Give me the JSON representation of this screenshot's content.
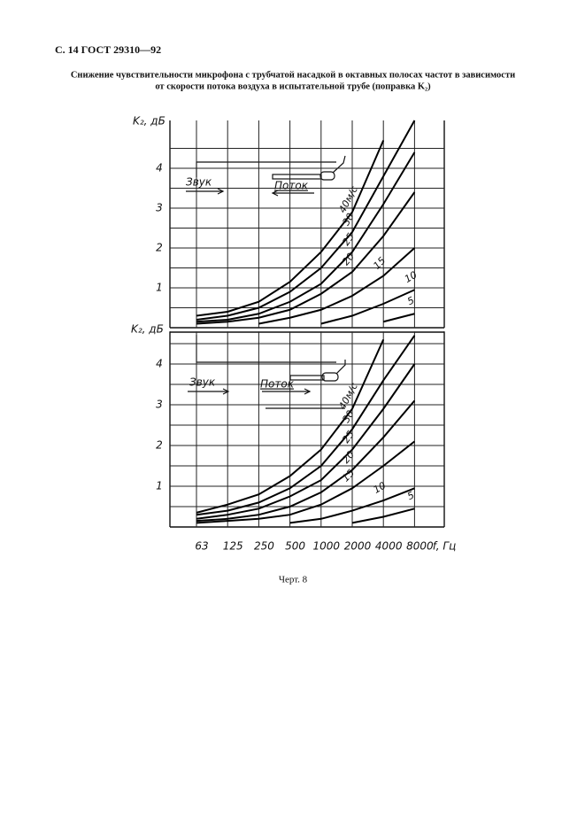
{
  "header": {
    "title": "С. 14 ГОСТ 29310—92"
  },
  "caption": {
    "line1": "Снижение чувствительности микрофона с трубчатой насадкой в октавных полосах частот в зависимости",
    "line2": "от скорости потока воздуха в испытательной трубе (поправка K₂)"
  },
  "chart_data": [
    {
      "type": "line",
      "y_label": "K₂, дБ",
      "sound_label": "Звук",
      "flow_label": "Поток",
      "categories": [
        "63",
        "125",
        "250",
        "500",
        "1000",
        "2000",
        "4000",
        "8000"
      ],
      "ylim": [
        0,
        5.2
      ],
      "yticks": [
        1,
        2,
        3,
        4
      ],
      "minor_yticks": [
        0.5,
        1.5,
        2.5,
        3.5,
        4.5
      ],
      "grid": true,
      "series": [
        {
          "name": "40м/с",
          "color": "#000000",
          "values": [
            0.3,
            0.4,
            0.65,
            1.15,
            1.9,
            2.9,
            4.7,
            null
          ]
        },
        {
          "name": "30",
          "color": "#000000",
          "values": [
            0.2,
            0.3,
            0.5,
            0.9,
            1.5,
            2.4,
            3.8,
            5.2
          ]
        },
        {
          "name": "25",
          "color": "#000000",
          "values": [
            0.15,
            0.2,
            0.35,
            0.65,
            1.1,
            1.9,
            3.1,
            4.4
          ]
        },
        {
          "name": "20",
          "color": "#000000",
          "values": [
            0.1,
            0.15,
            0.25,
            0.45,
            0.85,
            1.4,
            2.3,
            3.4
          ]
        },
        {
          "name": "15",
          "color": "#000000",
          "values": [
            null,
            null,
            0.1,
            0.25,
            0.45,
            0.8,
            1.3,
            2.0
          ]
        },
        {
          "name": "10",
          "color": "#000000",
          "values": [
            null,
            null,
            null,
            null,
            0.1,
            0.3,
            0.6,
            0.95
          ]
        },
        {
          "name": "5",
          "color": "#000000",
          "values": [
            null,
            null,
            null,
            null,
            null,
            null,
            0.15,
            0.35
          ]
        }
      ]
    },
    {
      "type": "line",
      "y_label": "K₂, дБ",
      "x_label": "f, Гц",
      "sound_label": "Звук",
      "flow_label": "Поток",
      "categories": [
        "63",
        "125",
        "250",
        "500",
        "1000",
        "2000",
        "4000",
        "8000"
      ],
      "ylim": [
        0,
        4.8
      ],
      "yticks": [
        1,
        2,
        3,
        4
      ],
      "minor_yticks": [
        0.5,
        1.5,
        2.5,
        3.5,
        4.5
      ],
      "grid": true,
      "series": [
        {
          "name": "40м/с",
          "color": "#000000",
          "values": [
            0.35,
            0.55,
            0.8,
            1.25,
            1.9,
            2.9,
            4.6,
            null
          ]
        },
        {
          "name": "30",
          "color": "#000000",
          "values": [
            0.3,
            0.4,
            0.6,
            0.95,
            1.5,
            2.4,
            3.6,
            4.7
          ]
        },
        {
          "name": "25",
          "color": "#000000",
          "values": [
            0.2,
            0.3,
            0.45,
            0.75,
            1.15,
            1.9,
            2.9,
            4.0
          ]
        },
        {
          "name": "20",
          "color": "#000000",
          "values": [
            0.15,
            0.2,
            0.3,
            0.5,
            0.85,
            1.4,
            2.2,
            3.1
          ]
        },
        {
          "name": "15",
          "color": "#000000",
          "values": [
            0.1,
            0.15,
            0.2,
            0.3,
            0.55,
            0.95,
            1.5,
            2.1
          ]
        },
        {
          "name": "10",
          "color": "#000000",
          "values": [
            null,
            null,
            null,
            0.1,
            0.2,
            0.4,
            0.65,
            0.95
          ]
        },
        {
          "name": "5",
          "color": "#000000",
          "values": [
            null,
            null,
            null,
            null,
            null,
            0.1,
            0.25,
            0.45
          ]
        }
      ]
    }
  ],
  "footer": {
    "label": "Черт. 8"
  }
}
